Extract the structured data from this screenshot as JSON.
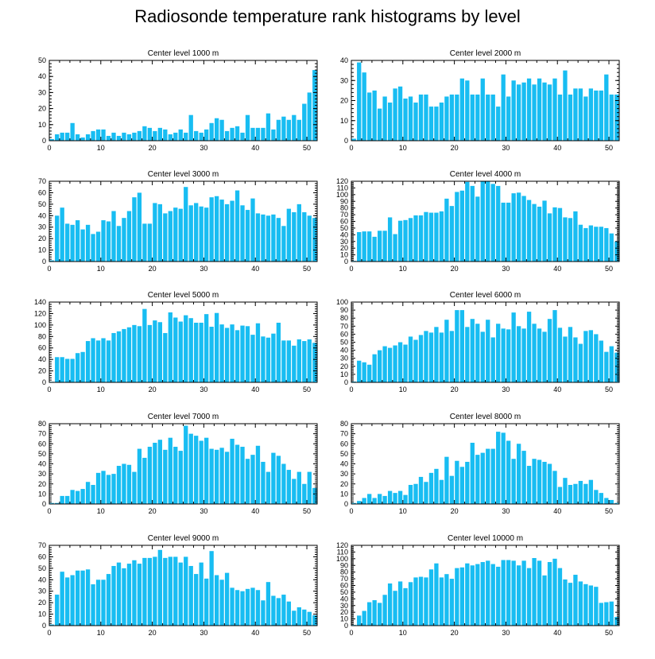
{
  "figure_title": "Radiosonde temperature rank histograms by level",
  "colors": {
    "bar": "#18BDF2",
    "axis": "#000000",
    "background": "#ffffff"
  },
  "chart_data": [
    {
      "type": "bar",
      "title": "Center level 1000 m",
      "xlabel": "",
      "ylabel": "",
      "grid": false,
      "xlim": [
        0,
        52
      ],
      "ylim": [
        0,
        50
      ],
      "xticks": [
        0,
        10,
        20,
        30,
        40,
        50
      ],
      "yticks": [
        0,
        10,
        20,
        30,
        40,
        50
      ],
      "x": [
        0,
        1,
        2,
        3,
        4,
        5,
        6,
        7,
        8,
        9,
        10,
        11,
        12,
        13,
        14,
        15,
        16,
        17,
        18,
        19,
        20,
        21,
        22,
        23,
        24,
        25,
        26,
        27,
        28,
        29,
        30,
        31,
        32,
        33,
        34,
        35,
        36,
        37,
        38,
        39,
        40,
        41,
        42,
        43,
        44,
        45,
        46,
        47,
        48,
        49,
        50,
        51
      ],
      "values": [
        1,
        4,
        5,
        5,
        11,
        4,
        2,
        4,
        6,
        7,
        7,
        3,
        5,
        3,
        5,
        4,
        5,
        6,
        9,
        8,
        6,
        8,
        7,
        4,
        5,
        7,
        5,
        16,
        6,
        5,
        7,
        11,
        14,
        13,
        6,
        8,
        9,
        5,
        16,
        8,
        8,
        8,
        17,
        7,
        13,
        15,
        13,
        16,
        13,
        23,
        30,
        44
      ]
    },
    {
      "type": "bar",
      "title": "Center level 2000 m",
      "xlabel": "",
      "ylabel": "",
      "grid": false,
      "xlim": [
        0,
        52
      ],
      "ylim": [
        0,
        40
      ],
      "xticks": [
        0,
        10,
        20,
        30,
        40,
        50
      ],
      "yticks": [
        0,
        10,
        20,
        30,
        40
      ],
      "x": [
        0,
        1,
        2,
        3,
        4,
        5,
        6,
        7,
        8,
        9,
        10,
        11,
        12,
        13,
        14,
        15,
        16,
        17,
        18,
        19,
        20,
        21,
        22,
        23,
        24,
        25,
        26,
        27,
        28,
        29,
        30,
        31,
        32,
        33,
        34,
        35,
        36,
        37,
        38,
        39,
        40,
        41,
        42,
        43,
        44,
        45,
        46,
        47,
        48,
        49,
        50,
        51
      ],
      "values": [
        1,
        39,
        34,
        24,
        25,
        16,
        22,
        19,
        26,
        27,
        21,
        22,
        19,
        23,
        23,
        17,
        17,
        19,
        22,
        23,
        23,
        31,
        30,
        23,
        23,
        31,
        23,
        23,
        17,
        33,
        22,
        30,
        28,
        29,
        31,
        28,
        31,
        29,
        28,
        31,
        23,
        35,
        23,
        26,
        26,
        22,
        26,
        25,
        25,
        33,
        23,
        23
      ]
    },
    {
      "type": "bar",
      "title": "Center level 3000 m",
      "xlabel": "",
      "ylabel": "",
      "grid": false,
      "xlim": [
        0,
        52
      ],
      "ylim": [
        0,
        70
      ],
      "xticks": [
        0,
        10,
        20,
        30,
        40,
        50
      ],
      "yticks": [
        0,
        10,
        20,
        30,
        40,
        50,
        60,
        70
      ],
      "x": [
        0,
        1,
        2,
        3,
        4,
        5,
        6,
        7,
        8,
        9,
        10,
        11,
        12,
        13,
        14,
        15,
        16,
        17,
        18,
        19,
        20,
        21,
        22,
        23,
        24,
        25,
        26,
        27,
        28,
        29,
        30,
        31,
        32,
        33,
        34,
        35,
        36,
        37,
        38,
        39,
        40,
        41,
        42,
        43,
        44,
        45,
        46,
        47,
        48,
        49,
        50,
        51
      ],
      "values": [
        1,
        40,
        47,
        33,
        32,
        36,
        28,
        32,
        24,
        26,
        36,
        35,
        44,
        31,
        38,
        44,
        56,
        60,
        33,
        33,
        51,
        50,
        42,
        44,
        47,
        46,
        65,
        49,
        51,
        48,
        47,
        56,
        57,
        54,
        50,
        53,
        62,
        49,
        45,
        55,
        42,
        41,
        40,
        41,
        38,
        31,
        46,
        43,
        50,
        43,
        40,
        38
      ]
    },
    {
      "type": "bar",
      "title": "Center level 4000 m",
      "xlabel": "",
      "ylabel": "",
      "grid": false,
      "xlim": [
        0,
        52
      ],
      "ylim": [
        0,
        120
      ],
      "xticks": [
        0,
        10,
        20,
        30,
        40,
        50
      ],
      "yticks": [
        0,
        10,
        20,
        30,
        40,
        50,
        60,
        70,
        80,
        90,
        100,
        110,
        120
      ],
      "x": [
        0,
        1,
        2,
        3,
        4,
        5,
        6,
        7,
        8,
        9,
        10,
        11,
        12,
        13,
        14,
        15,
        16,
        17,
        18,
        19,
        20,
        21,
        22,
        23,
        24,
        25,
        26,
        27,
        28,
        29,
        30,
        31,
        32,
        33,
        34,
        35,
        36,
        37,
        38,
        39,
        40,
        41,
        42,
        43,
        44,
        45,
        46,
        47,
        48,
        49,
        50,
        51
      ],
      "values": [
        1,
        44,
        45,
        45,
        37,
        46,
        46,
        66,
        41,
        61,
        62,
        65,
        69,
        69,
        74,
        73,
        73,
        75,
        94,
        83,
        104,
        106,
        119,
        113,
        97,
        120,
        120,
        116,
        113,
        88,
        88,
        102,
        103,
        98,
        92,
        86,
        82,
        91,
        72,
        81,
        80,
        66,
        65,
        75,
        55,
        50,
        54,
        52,
        52,
        50,
        42,
        30
      ]
    },
    {
      "type": "bar",
      "title": "Center level 5000 m",
      "xlabel": "",
      "ylabel": "",
      "grid": false,
      "xlim": [
        0,
        52
      ],
      "ylim": [
        0,
        140
      ],
      "xticks": [
        0,
        10,
        20,
        30,
        40,
        50
      ],
      "yticks": [
        0,
        20,
        40,
        60,
        80,
        100,
        120,
        140
      ],
      "x": [
        0,
        1,
        2,
        3,
        4,
        5,
        6,
        7,
        8,
        9,
        10,
        11,
        12,
        13,
        14,
        15,
        16,
        17,
        18,
        19,
        20,
        21,
        22,
        23,
        24,
        25,
        26,
        27,
        28,
        29,
        30,
        31,
        32,
        33,
        34,
        35,
        36,
        37,
        38,
        39,
        40,
        41,
        42,
        43,
        44,
        45,
        46,
        47,
        48,
        49,
        50,
        51
      ],
      "values": [
        1,
        44,
        44,
        41,
        41,
        51,
        53,
        72,
        77,
        73,
        77,
        73,
        86,
        89,
        93,
        96,
        100,
        98,
        128,
        100,
        108,
        105,
        86,
        122,
        113,
        106,
        117,
        112,
        104,
        104,
        119,
        97,
        121,
        101,
        95,
        101,
        91,
        99,
        98,
        83,
        103,
        80,
        78,
        85,
        104,
        73,
        73,
        64,
        75,
        72,
        75,
        69
      ]
    },
    {
      "type": "bar",
      "title": "Center level 6000 m",
      "xlabel": "",
      "ylabel": "",
      "grid": false,
      "xlim": [
        0,
        52
      ],
      "ylim": [
        0,
        100
      ],
      "xticks": [
        0,
        10,
        20,
        30,
        40,
        50
      ],
      "yticks": [
        0,
        10,
        20,
        30,
        40,
        50,
        60,
        70,
        80,
        90,
        100
      ],
      "x": [
        0,
        1,
        2,
        3,
        4,
        5,
        6,
        7,
        8,
        9,
        10,
        11,
        12,
        13,
        14,
        15,
        16,
        17,
        18,
        19,
        20,
        21,
        22,
        23,
        24,
        25,
        26,
        27,
        28,
        29,
        30,
        31,
        32,
        33,
        34,
        35,
        36,
        37,
        38,
        39,
        40,
        41,
        42,
        43,
        44,
        45,
        46,
        47,
        48,
        49,
        50,
        51
      ],
      "values": [
        1,
        27,
        25,
        22,
        35,
        40,
        45,
        43,
        46,
        50,
        47,
        57,
        53,
        59,
        64,
        62,
        69,
        62,
        78,
        64,
        90,
        90,
        69,
        79,
        73,
        63,
        78,
        56,
        73,
        67,
        66,
        87,
        70,
        67,
        88,
        73,
        67,
        63,
        79,
        90,
        68,
        57,
        69,
        56,
        48,
        64,
        65,
        60,
        52,
        38,
        45,
        37
      ]
    },
    {
      "type": "bar",
      "title": "Center level 7000 m",
      "xlabel": "",
      "ylabel": "",
      "grid": false,
      "xlim": [
        0,
        52
      ],
      "ylim": [
        0,
        80
      ],
      "xticks": [
        0,
        10,
        20,
        30,
        40,
        50
      ],
      "yticks": [
        0,
        10,
        20,
        30,
        40,
        50,
        60,
        70,
        80
      ],
      "x": [
        0,
        1,
        2,
        3,
        4,
        5,
        6,
        7,
        8,
        9,
        10,
        11,
        12,
        13,
        14,
        15,
        16,
        17,
        18,
        19,
        20,
        21,
        22,
        23,
        24,
        25,
        26,
        27,
        28,
        29,
        30,
        31,
        32,
        33,
        34,
        35,
        36,
        37,
        38,
        39,
        40,
        41,
        42,
        43,
        44,
        45,
        46,
        47,
        48,
        49,
        50,
        51
      ],
      "values": [
        1,
        1,
        8,
        8,
        14,
        13,
        15,
        22,
        19,
        31,
        33,
        29,
        30,
        38,
        40,
        39,
        32,
        55,
        46,
        57,
        61,
        64,
        54,
        66,
        57,
        53,
        78,
        70,
        68,
        63,
        66,
        55,
        54,
        56,
        52,
        65,
        59,
        57,
        45,
        49,
        58,
        42,
        32,
        51,
        48,
        40,
        34,
        25,
        32,
        20,
        32,
        16
      ]
    },
    {
      "type": "bar",
      "title": "Center level 8000 m",
      "xlabel": "",
      "ylabel": "",
      "grid": false,
      "xlim": [
        0,
        52
      ],
      "ylim": [
        0,
        80
      ],
      "xticks": [
        0,
        10,
        20,
        30,
        40,
        50
      ],
      "yticks": [
        0,
        10,
        20,
        30,
        40,
        50,
        60,
        70,
        80
      ],
      "x": [
        0,
        1,
        2,
        3,
        4,
        5,
        6,
        7,
        8,
        9,
        10,
        11,
        12,
        13,
        14,
        15,
        16,
        17,
        18,
        19,
        20,
        21,
        22,
        23,
        24,
        25,
        26,
        27,
        28,
        29,
        30,
        31,
        32,
        33,
        34,
        35,
        36,
        37,
        38,
        39,
        40,
        41,
        42,
        43,
        44,
        45,
        46,
        47,
        48,
        49,
        50,
        51
      ],
      "values": [
        1,
        3,
        6,
        10,
        6,
        10,
        8,
        13,
        11,
        13,
        9,
        19,
        20,
        27,
        22,
        31,
        35,
        24,
        47,
        28,
        43,
        37,
        42,
        61,
        49,
        51,
        55,
        55,
        72,
        71,
        63,
        45,
        60,
        53,
        38,
        45,
        44,
        42,
        40,
        33,
        17,
        26,
        19,
        20,
        23,
        20,
        24,
        14,
        11,
        6,
        4,
        1
      ]
    },
    {
      "type": "bar",
      "title": "Center level 9000 m",
      "xlabel": "",
      "ylabel": "",
      "grid": false,
      "xlim": [
        0,
        52
      ],
      "ylim": [
        0,
        70
      ],
      "xticks": [
        0,
        10,
        20,
        30,
        40,
        50
      ],
      "yticks": [
        0,
        10,
        20,
        30,
        40,
        50,
        60,
        70
      ],
      "x": [
        0,
        1,
        2,
        3,
        4,
        5,
        6,
        7,
        8,
        9,
        10,
        11,
        12,
        13,
        14,
        15,
        16,
        17,
        18,
        19,
        20,
        21,
        22,
        23,
        24,
        25,
        26,
        27,
        28,
        29,
        30,
        31,
        32,
        33,
        34,
        35,
        36,
        37,
        38,
        39,
        40,
        41,
        42,
        43,
        44,
        45,
        46,
        47,
        48,
        49,
        50,
        51
      ],
      "values": [
        1,
        27,
        47,
        42,
        44,
        48,
        48,
        49,
        36,
        40,
        40,
        45,
        52,
        55,
        50,
        54,
        57,
        54,
        59,
        59,
        60,
        66,
        59,
        60,
        60,
        55,
        60,
        52,
        45,
        55,
        41,
        65,
        44,
        40,
        46,
        33,
        31,
        30,
        32,
        33,
        31,
        22,
        38,
        26,
        24,
        27,
        21,
        13,
        16,
        14,
        12,
        9
      ]
    },
    {
      "type": "bar",
      "title": "Center level 10000 m",
      "xlabel": "",
      "ylabel": "",
      "grid": false,
      "xlim": [
        0,
        52
      ],
      "ylim": [
        0,
        120
      ],
      "xticks": [
        0,
        10,
        20,
        30,
        40,
        50
      ],
      "yticks": [
        0,
        10,
        20,
        30,
        40,
        50,
        60,
        70,
        80,
        90,
        100,
        110,
        120
      ],
      "x": [
        0,
        1,
        2,
        3,
        4,
        5,
        6,
        7,
        8,
        9,
        10,
        11,
        12,
        13,
        14,
        15,
        16,
        17,
        18,
        19,
        20,
        21,
        22,
        23,
        24,
        25,
        26,
        27,
        28,
        29,
        30,
        31,
        32,
        33,
        34,
        35,
        36,
        37,
        38,
        39,
        40,
        41,
        42,
        43,
        44,
        45,
        46,
        47,
        48,
        49,
        50,
        51
      ],
      "values": [
        1,
        15,
        22,
        35,
        38,
        34,
        46,
        63,
        52,
        66,
        56,
        65,
        72,
        73,
        72,
        84,
        93,
        72,
        77,
        70,
        86,
        87,
        93,
        90,
        92,
        95,
        97,
        92,
        88,
        98,
        98,
        97,
        90,
        97,
        86,
        101,
        97,
        75,
        95,
        100,
        86,
        69,
        64,
        76,
        66,
        62,
        60,
        58,
        34,
        35,
        36,
        13
      ]
    }
  ]
}
